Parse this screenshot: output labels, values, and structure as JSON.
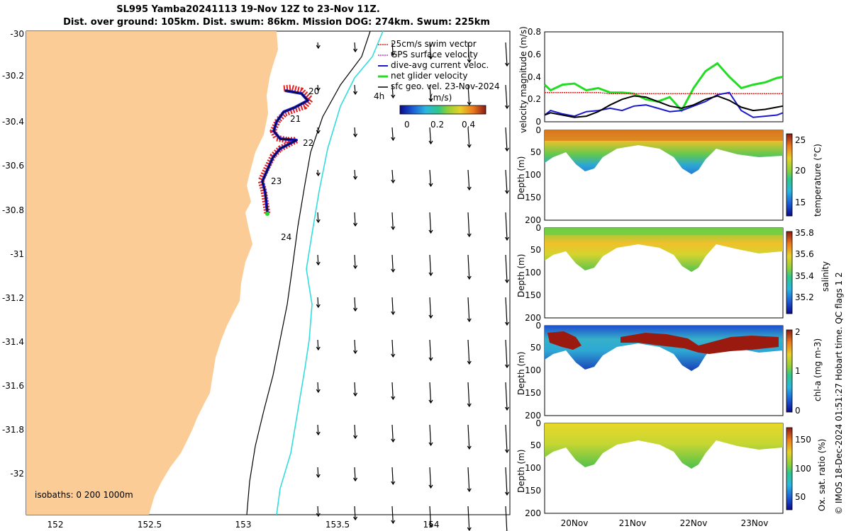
{
  "header": {
    "title_line1": "SL995 Yamba20241113 19-Nov 12Z to 23-Nov 11Z.",
    "title_line2": "Dist. over ground: 105km. Dist. swum: 86km. Mission DOG: 274km. Swum: 225km"
  },
  "map": {
    "legend": [
      {
        "label": "25cm/s swim vector",
        "color": "#e02020"
      },
      {
        "label": "GPS surface velocity",
        "color": "#cc33cc"
      },
      {
        "label": "dive-avg current veloc.",
        "color": "#1a1acc"
      },
      {
        "label": "net glider velocity",
        "color": "#22dd22"
      },
      {
        "label": "sfc geo. vel. 23-Nov-2024",
        "color": "#000000"
      }
    ],
    "colorbar_label": "(m/s)",
    "colorbar_ticks": [
      "0",
      "0.2",
      "0.4"
    ],
    "arrow_label": "4h",
    "isobaths_label": "isobaths: 0   200  1000m",
    "x_ticks": [
      "152",
      "152.5",
      "153",
      "153.5",
      "154"
    ],
    "y_ticks": [
      "-30",
      "-30.2",
      "-30.4",
      "-30.6",
      "-30.8",
      "-31",
      "-31.2",
      "-31.4",
      "-31.6",
      "-31.8",
      "-32"
    ],
    "day_labels": [
      "20",
      "21",
      "22",
      "23",
      "24"
    ],
    "colors": {
      "land": "#fbcc96",
      "isobath_200": "#000000",
      "isobath_1000": "#33dddd"
    }
  },
  "chart_data": [
    {
      "type": "line",
      "title": "",
      "ylabel": "velocity magnitude (m/s)",
      "ylim": [
        0,
        0.8
      ],
      "yticks": [
        "0",
        "0.2",
        "0.4",
        "0.6",
        "0.8"
      ],
      "x": [
        19.5,
        19.6,
        19.8,
        20.0,
        20.2,
        20.4,
        20.6,
        20.8,
        21.0,
        21.2,
        21.4,
        21.6,
        21.8,
        22.0,
        22.2,
        22.4,
        22.6,
        22.8,
        23.0,
        23.2,
        23.4,
        23.5
      ],
      "series": [
        {
          "name": "net glider velocity",
          "color": "#22dd22",
          "values": [
            0.33,
            0.28,
            0.33,
            0.34,
            0.28,
            0.3,
            0.26,
            0.26,
            0.25,
            0.2,
            0.18,
            0.22,
            0.1,
            0.3,
            0.45,
            0.52,
            0.4,
            0.3,
            0.33,
            0.35,
            0.39,
            0.4
          ]
        },
        {
          "name": "swim",
          "color": "#e02020",
          "values": [
            0.26,
            0.26,
            0.26,
            0.26,
            0.26,
            0.26,
            0.25,
            0.25,
            0.25,
            0.25,
            0.25,
            0.25,
            0.25,
            0.25,
            0.25,
            0.25,
            0.25,
            0.25,
            0.25,
            0.25,
            0.25,
            0.25
          ]
        },
        {
          "name": "dive-avg current veloc.",
          "color": "#1a1acc",
          "values": [
            0.06,
            0.1,
            0.07,
            0.05,
            0.09,
            0.1,
            0.12,
            0.1,
            0.14,
            0.15,
            0.12,
            0.09,
            0.1,
            0.14,
            0.18,
            0.24,
            0.26,
            0.1,
            0.04,
            0.05,
            0.06,
            0.08
          ]
        },
        {
          "name": "sfc geo. vel.",
          "color": "#000000",
          "values": [
            0.06,
            0.08,
            0.06,
            0.04,
            0.05,
            0.09,
            0.15,
            0.2,
            0.23,
            0.22,
            0.18,
            0.14,
            0.12,
            0.15,
            0.2,
            0.23,
            0.19,
            0.13,
            0.1,
            0.11,
            0.13,
            0.14
          ]
        }
      ]
    },
    {
      "type": "heatmap",
      "ylabel": "Depth (m)",
      "colorbar_label": "temperature (°C)",
      "yticks": [
        "0",
        "50",
        "100",
        "150",
        "200"
      ],
      "colorbar_ticks": [
        "25",
        "20",
        "15"
      ],
      "clim": [
        13,
        26
      ]
    },
    {
      "type": "heatmap",
      "ylabel": "Depth (m)",
      "colorbar_label": "salinity",
      "yticks": [
        "0",
        "50",
        "100",
        "150",
        "200"
      ],
      "colorbar_ticks": [
        "35.8",
        "35.6",
        "35.4",
        "35.2"
      ],
      "clim": [
        35.1,
        35.8
      ]
    },
    {
      "type": "heatmap",
      "ylabel": "Depth (m)",
      "colorbar_label": "chl-a (mg m-3)",
      "yticks": [
        "0",
        "50",
        "100",
        "150",
        "200"
      ],
      "colorbar_ticks": [
        "2",
        "1",
        "0"
      ],
      "clim": [
        0,
        2
      ]
    },
    {
      "type": "heatmap",
      "ylabel": "Depth (m)",
      "colorbar_label": "Ox. sat. ratio (%)",
      "yticks": [
        "0",
        "50",
        "100",
        "150",
        "200"
      ],
      "colorbar_ticks": [
        "150",
        "100",
        "50"
      ],
      "clim": [
        20,
        170
      ],
      "xlabels": [
        "20Nov",
        "21Nov",
        "22Nov",
        "23Nov"
      ]
    }
  ],
  "footer": {
    "side_text": "© IMOS 18-Dec-2024 01:51:27 Hobart time. QC flags 1  2"
  }
}
